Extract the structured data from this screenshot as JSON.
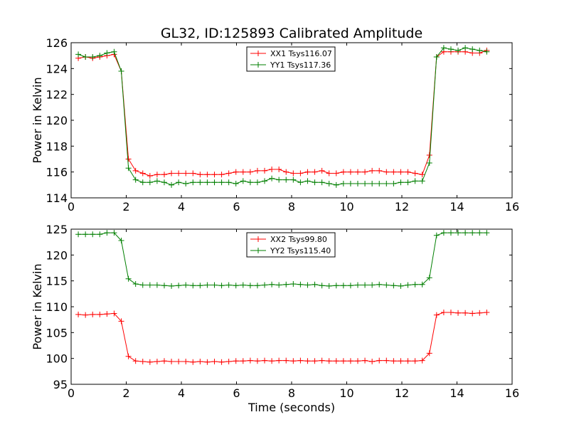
{
  "title": "GL32, ID:125893 Calibrated Amplitude",
  "colors": {
    "red": "#ff0000",
    "green": "#007f00"
  },
  "chart_data": [
    {
      "type": "line",
      "xlabel": "",
      "ylabel": "Power in Kelvin",
      "xlim": [
        0,
        16
      ],
      "ylim": [
        114,
        126
      ],
      "xticks": [
        "0",
        "2",
        "4",
        "6",
        "8",
        "10",
        "12",
        "14",
        "16"
      ],
      "yticks": [
        "114",
        "116",
        "118",
        "120",
        "122",
        "124",
        "126"
      ],
      "legend_position": "top-center",
      "x": [
        0.26,
        0.52,
        0.78,
        1.04,
        1.3,
        1.56,
        1.82,
        2.08,
        2.34,
        2.6,
        2.86,
        3.12,
        3.38,
        3.64,
        3.9,
        4.16,
        4.42,
        4.68,
        4.94,
        5.2,
        5.46,
        5.72,
        5.98,
        6.24,
        6.5,
        6.76,
        7.02,
        7.28,
        7.54,
        7.8,
        8.06,
        8.32,
        8.58,
        8.84,
        9.1,
        9.36,
        9.62,
        9.88,
        10.14,
        10.4,
        10.66,
        10.92,
        11.18,
        11.44,
        11.7,
        11.96,
        12.22,
        12.48,
        12.74,
        13.0,
        13.26,
        13.52,
        13.78,
        14.04,
        14.3,
        14.56,
        14.82,
        15.08
      ],
      "series": [
        {
          "name": "XX1 Tsys116.07",
          "color": "#ff0000",
          "values": [
            124.8,
            124.9,
            124.8,
            124.9,
            125.0,
            125.1,
            123.8,
            117.0,
            116.1,
            115.9,
            115.7,
            115.8,
            115.8,
            115.9,
            115.9,
            115.9,
            115.9,
            115.8,
            115.8,
            115.8,
            115.8,
            115.9,
            116.0,
            116.0,
            116.0,
            116.1,
            116.1,
            116.2,
            116.2,
            116.0,
            115.9,
            115.9,
            116.0,
            116.0,
            116.1,
            115.9,
            115.9,
            116.0,
            116.0,
            116.0,
            116.0,
            116.1,
            116.1,
            116.0,
            116.0,
            116.0,
            116.0,
            115.9,
            115.8,
            117.3,
            124.9,
            125.3,
            125.3,
            125.3,
            125.3,
            125.2,
            125.2,
            125.4
          ]
        },
        {
          "name": "YY1 Tsys117.36",
          "color": "#007f00",
          "values": [
            125.1,
            124.9,
            124.9,
            125.0,
            125.2,
            125.3,
            123.8,
            116.3,
            115.4,
            115.2,
            115.2,
            115.3,
            115.2,
            115.0,
            115.2,
            115.1,
            115.2,
            115.2,
            115.2,
            115.2,
            115.2,
            115.2,
            115.1,
            115.3,
            115.2,
            115.2,
            115.3,
            115.5,
            115.4,
            115.4,
            115.4,
            115.2,
            115.3,
            115.2,
            115.2,
            115.1,
            115.0,
            115.1,
            115.1,
            115.1,
            115.1,
            115.1,
            115.1,
            115.1,
            115.1,
            115.2,
            115.2,
            115.3,
            115.3,
            116.7,
            124.9,
            125.6,
            125.5,
            125.4,
            125.6,
            125.5,
            125.4,
            125.3
          ]
        }
      ]
    },
    {
      "type": "line",
      "xlabel": "Time (seconds)",
      "ylabel": "Power in Kelvin",
      "xlim": [
        0,
        16
      ],
      "ylim": [
        95,
        125
      ],
      "xticks": [
        "0",
        "2",
        "4",
        "6",
        "8",
        "10",
        "12",
        "14",
        "16"
      ],
      "yticks": [
        "95",
        "100",
        "105",
        "110",
        "115",
        "120",
        "125"
      ],
      "legend_position": "top-center",
      "x": [
        0.26,
        0.52,
        0.78,
        1.04,
        1.3,
        1.56,
        1.82,
        2.08,
        2.34,
        2.6,
        2.86,
        3.12,
        3.38,
        3.64,
        3.9,
        4.16,
        4.42,
        4.68,
        4.94,
        5.2,
        5.46,
        5.72,
        5.98,
        6.24,
        6.5,
        6.76,
        7.02,
        7.28,
        7.54,
        7.8,
        8.06,
        8.32,
        8.58,
        8.84,
        9.1,
        9.36,
        9.62,
        9.88,
        10.14,
        10.4,
        10.66,
        10.92,
        11.18,
        11.44,
        11.7,
        11.96,
        12.22,
        12.48,
        12.74,
        13.0,
        13.26,
        13.52,
        13.78,
        14.04,
        14.3,
        14.56,
        14.82,
        15.08
      ],
      "series": [
        {
          "name": "XX2 Tsys99.80",
          "color": "#ff0000",
          "values": [
            108.5,
            108.4,
            108.5,
            108.5,
            108.6,
            108.7,
            107.2,
            100.4,
            99.5,
            99.4,
            99.3,
            99.4,
            99.5,
            99.4,
            99.4,
            99.4,
            99.3,
            99.4,
            99.3,
            99.4,
            99.3,
            99.4,
            99.5,
            99.5,
            99.6,
            99.5,
            99.6,
            99.5,
            99.6,
            99.6,
            99.5,
            99.6,
            99.5,
            99.5,
            99.6,
            99.5,
            99.5,
            99.5,
            99.5,
            99.5,
            99.6,
            99.4,
            99.6,
            99.6,
            99.5,
            99.5,
            99.5,
            99.5,
            99.6,
            101.0,
            108.4,
            108.9,
            108.9,
            108.8,
            108.8,
            108.7,
            108.8,
            108.9
          ]
        },
        {
          "name": "YY2 Tsys115.40",
          "color": "#007f00",
          "values": [
            124.0,
            124.0,
            124.0,
            124.0,
            124.3,
            124.3,
            122.8,
            115.4,
            114.4,
            114.2,
            114.2,
            114.2,
            114.1,
            114.0,
            114.1,
            114.2,
            114.1,
            114.1,
            114.2,
            114.2,
            114.1,
            114.2,
            114.1,
            114.2,
            114.1,
            114.1,
            114.2,
            114.3,
            114.2,
            114.3,
            114.4,
            114.3,
            114.2,
            114.3,
            114.1,
            114.0,
            114.1,
            114.1,
            114.1,
            114.2,
            114.2,
            114.2,
            114.3,
            114.2,
            114.1,
            114.0,
            114.2,
            114.3,
            114.3,
            115.6,
            123.8,
            124.3,
            124.3,
            124.3,
            124.3,
            124.3,
            124.3,
            124.3
          ]
        }
      ]
    }
  ]
}
